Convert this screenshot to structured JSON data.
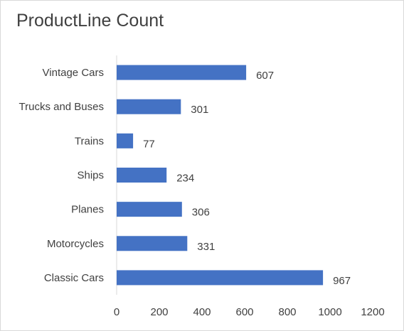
{
  "chart_data": {
    "type": "bar",
    "orientation": "horizontal",
    "title": "ProductLine Count",
    "categories": [
      "Vintage Cars",
      "Trucks and Buses",
      "Trains",
      "Ships",
      "Planes",
      "Motorcycles",
      "Classic Cars"
    ],
    "values": [
      607,
      301,
      77,
      234,
      306,
      331,
      967
    ],
    "xlim": [
      0,
      1200
    ],
    "xticks": [
      "0",
      "200",
      "400",
      "600",
      "800",
      "1000",
      "1200"
    ],
    "xlabel": "",
    "ylabel": "",
    "grid": false,
    "legend": "none",
    "bar_color": "#4472C4",
    "data_labels": true
  }
}
